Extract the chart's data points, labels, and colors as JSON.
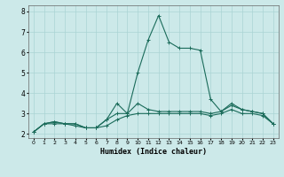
{
  "x": [
    0,
    1,
    2,
    3,
    4,
    5,
    6,
    7,
    8,
    9,
    10,
    11,
    12,
    13,
    14,
    15,
    16,
    17,
    18,
    19,
    20,
    21,
    22,
    23
  ],
  "line_max": [
    2.1,
    2.5,
    2.6,
    2.5,
    2.5,
    2.3,
    2.3,
    2.7,
    3.5,
    3.0,
    5.0,
    6.6,
    7.8,
    6.5,
    6.2,
    6.2,
    6.1,
    3.7,
    3.1,
    3.5,
    3.2,
    3.1,
    3.0,
    2.5
  ],
  "line_mean": [
    2.1,
    2.5,
    2.6,
    2.5,
    2.5,
    2.3,
    2.3,
    2.7,
    3.0,
    3.0,
    3.5,
    3.2,
    3.1,
    3.1,
    3.1,
    3.1,
    3.1,
    3.0,
    3.1,
    3.4,
    3.2,
    3.1,
    3.0,
    2.5
  ],
  "line_min": [
    2.1,
    2.5,
    2.5,
    2.5,
    2.4,
    2.3,
    2.3,
    2.4,
    2.7,
    2.9,
    3.0,
    3.0,
    3.0,
    3.0,
    3.0,
    3.0,
    3.0,
    2.9,
    3.0,
    3.2,
    3.0,
    3.0,
    2.9,
    2.5
  ],
  "bg_color": "#cce9e9",
  "grid_color": "#aad4d4",
  "line_color": "#1a6b5a",
  "xlabel": "Humidex (Indice chaleur)",
  "ylim": [
    1.8,
    8.3
  ],
  "xlim": [
    -0.5,
    23.5
  ],
  "yticks": [
    2,
    3,
    4,
    5,
    6,
    7,
    8
  ],
  "xticks": [
    0,
    1,
    2,
    3,
    4,
    5,
    6,
    7,
    8,
    9,
    10,
    11,
    12,
    13,
    14,
    15,
    16,
    17,
    18,
    19,
    20,
    21,
    22,
    23
  ]
}
